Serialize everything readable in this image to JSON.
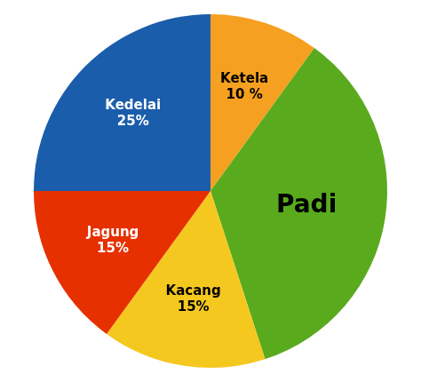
{
  "chart_data": {
    "type": "pie",
    "categories": [
      "Ketela",
      "Padi",
      "Kacang",
      "Jagung",
      "Kedelai"
    ],
    "values": [
      10,
      35,
      15,
      15,
      25
    ],
    "value_labels": [
      "10 %",
      null,
      "15%",
      "15%",
      "25%"
    ],
    "colors": [
      "#f5a020",
      "#5aaa1e",
      "#f5c820",
      "#e63000",
      "#1a5dab"
    ],
    "data_labels": true
  }
}
